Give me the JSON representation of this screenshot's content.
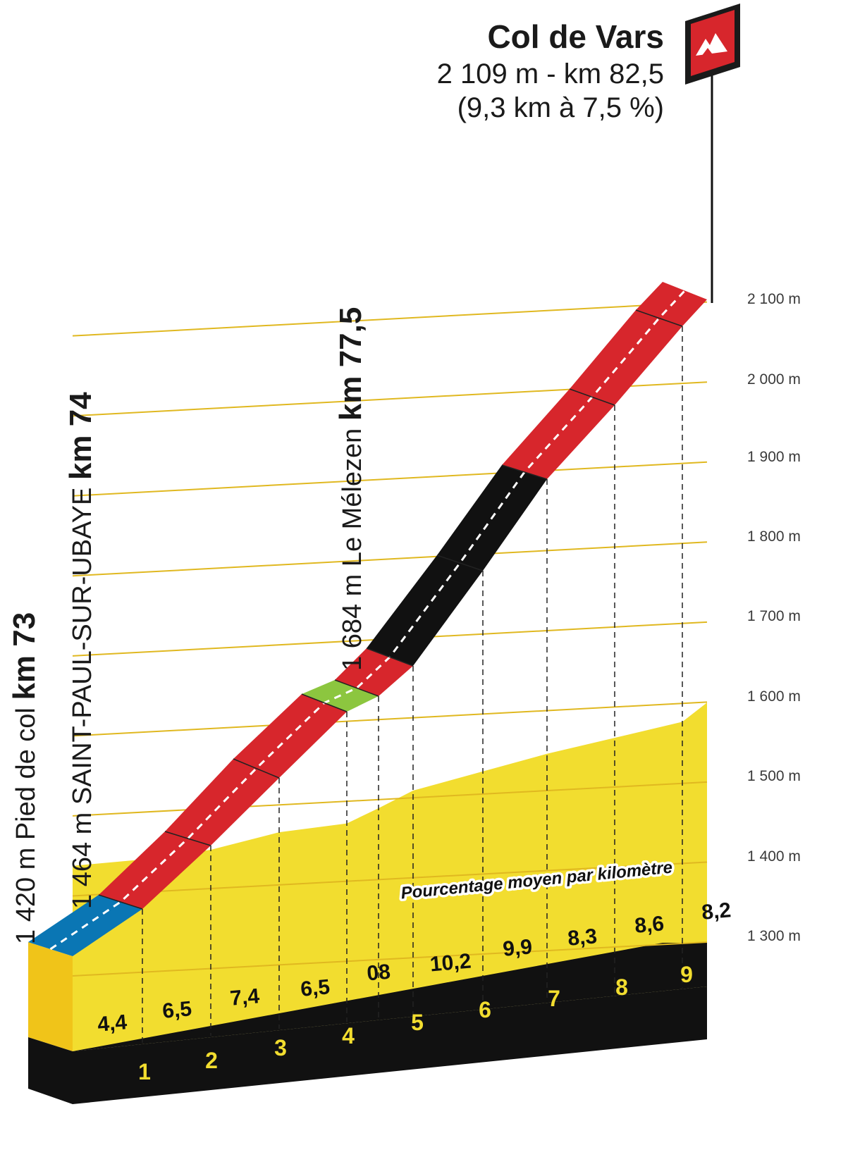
{
  "summit": {
    "name": "Col de Vars",
    "line1": "2 109 m - km 82,5",
    "line2": "(9,3 km à 7,5 %)",
    "icon": "mountain-icon",
    "flag_color": "#d7262c"
  },
  "points": [
    {
      "alt_name": "1 420 m Pied de col",
      "km_label": "km 73"
    },
    {
      "alt_name": "1 464 m SAINT-PAUL-SUR-UBAYE",
      "km_label": "km 74"
    },
    {
      "alt_name": "1 684 m Le Mélezen",
      "km_label": "km 77,5"
    }
  ],
  "caption": "Pourcentage moyen par kilomètre",
  "colors": {
    "yellow": "#f2dd2f",
    "blue": "#0a76b4",
    "red": "#d7262c",
    "green": "#8cc63f",
    "black": "#111111",
    "side": "#f0c419"
  },
  "chart_data": {
    "type": "area",
    "title": "Col de Vars",
    "xlabel": "",
    "ylabel": "",
    "y_unit": "m",
    "ylim": [
      1300,
      2100
    ],
    "yticks": [
      1300,
      1400,
      1500,
      1600,
      1700,
      1800,
      1900,
      2000,
      2100
    ],
    "ytick_labels": [
      "1 300 m",
      "1 400 m",
      "1 500 m",
      "1 600 m",
      "1 700 m",
      "1 800 m",
      "1 900 m",
      "2 000 m",
      "2 100 m"
    ],
    "km_markers": [
      "1",
      "2",
      "3",
      "4",
      "5",
      "6",
      "7",
      "8",
      "9"
    ],
    "segments": [
      {
        "grade": "4,4",
        "color": "blue"
      },
      {
        "grade": "6,5",
        "color": "red"
      },
      {
        "grade": "7,4",
        "color": "red"
      },
      {
        "grade": "6,5",
        "color": "red"
      },
      {
        "grade": "0",
        "color": "green"
      },
      {
        "grade": "8",
        "color": "red"
      },
      {
        "grade": "10,2",
        "color": "black"
      },
      {
        "grade": "9,9",
        "color": "black"
      },
      {
        "grade": "8,3",
        "color": "red"
      },
      {
        "grade": "8,6",
        "color": "red"
      },
      {
        "grade": "8,2",
        "color": "red"
      }
    ]
  }
}
